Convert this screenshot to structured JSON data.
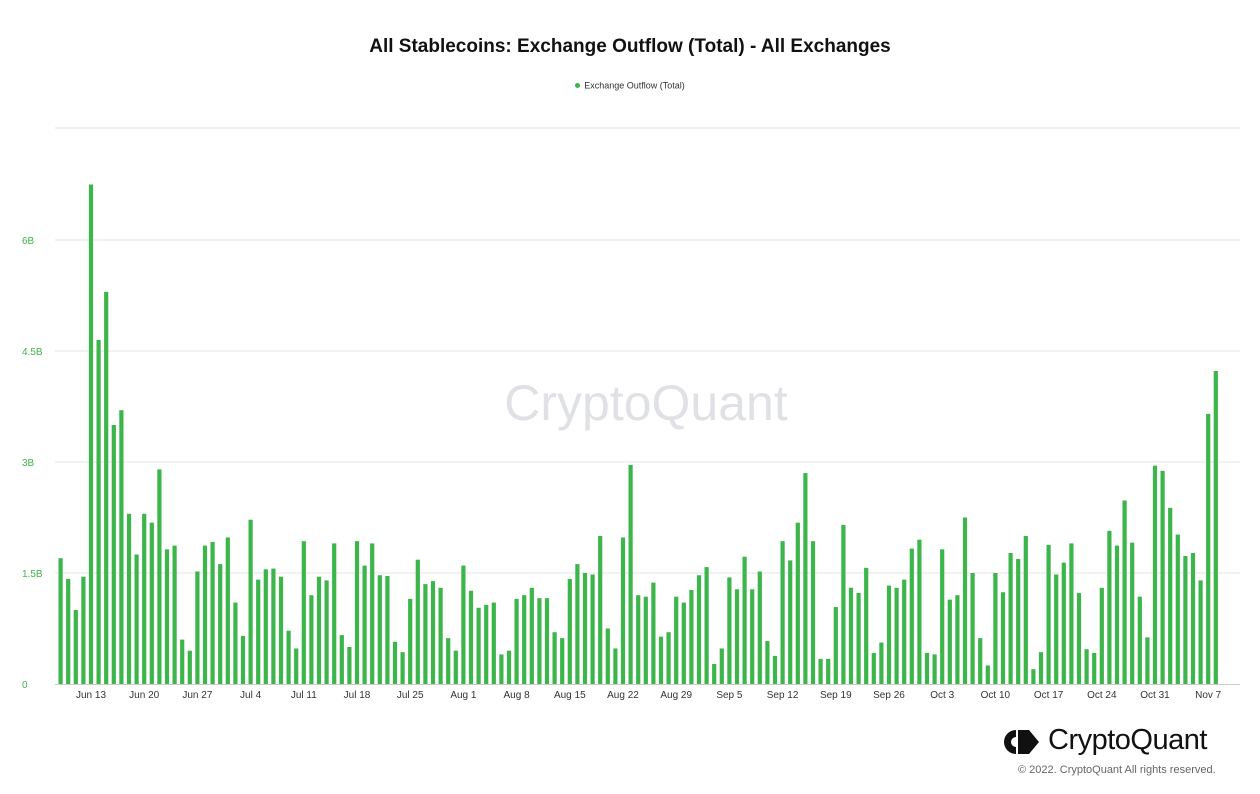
{
  "brand": {
    "name": "CryptoQuant",
    "watermark": "CryptoQuant",
    "copyright": "© 2022. CryptoQuant All rights reserved.",
    "accent_color": "#3cb54a"
  },
  "chart_data": {
    "type": "bar",
    "title": "All Stablecoins: Exchange Outflow (Total) - All Exchanges",
    "xlabel": "",
    "ylabel": "",
    "ylim": [
      0,
      7500000000
    ],
    "yticks": [
      0,
      1500000000,
      3000000000,
      4500000000,
      6000000000
    ],
    "ytick_labels": [
      "0",
      "1.5B",
      "3B",
      "4.5B",
      "6B"
    ],
    "grid": true,
    "legend_position": "top-center",
    "color": "#3cb54a",
    "start_date": "2022-06-09",
    "xtick_labels": [
      {
        "label": "Jun 13",
        "index": 4
      },
      {
        "label": "Jun 20",
        "index": 11
      },
      {
        "label": "Jun 27",
        "index": 18
      },
      {
        "label": "Jul 4",
        "index": 25
      },
      {
        "label": "Jul 11",
        "index": 32
      },
      {
        "label": "Jul 18",
        "index": 39
      },
      {
        "label": "Jul 25",
        "index": 46
      },
      {
        "label": "Aug 1",
        "index": 53
      },
      {
        "label": "Aug 8",
        "index": 60
      },
      {
        "label": "Aug 15",
        "index": 67
      },
      {
        "label": "Aug 22",
        "index": 74
      },
      {
        "label": "Aug 29",
        "index": 81
      },
      {
        "label": "Sep 5",
        "index": 88
      },
      {
        "label": "Sep 12",
        "index": 95
      },
      {
        "label": "Sep 19",
        "index": 102
      },
      {
        "label": "Sep 26",
        "index": 109
      },
      {
        "label": "Oct 3",
        "index": 116
      },
      {
        "label": "Oct 10",
        "index": 123
      },
      {
        "label": "Oct 17",
        "index": 130
      },
      {
        "label": "Oct 24",
        "index": 137
      },
      {
        "label": "Oct 31",
        "index": 144
      },
      {
        "label": "Nov 7",
        "index": 151
      }
    ],
    "series": [
      {
        "name": "Exchange Outflow (Total)",
        "values": [
          1.7,
          1.42,
          1.0,
          1.45,
          6.75,
          4.65,
          5.3,
          3.5,
          3.7,
          2.3,
          1.75,
          2.3,
          2.18,
          2.9,
          1.82,
          1.87,
          0.6,
          0.45,
          1.52,
          1.87,
          1.92,
          1.62,
          1.98,
          1.1,
          0.65,
          2.22,
          1.41,
          1.55,
          1.56,
          1.45,
          0.72,
          0.48,
          1.93,
          1.2,
          1.45,
          1.4,
          1.9,
          0.66,
          0.5,
          1.93,
          1.6,
          1.9,
          1.47,
          1.46,
          0.57,
          0.43,
          1.15,
          1.68,
          1.35,
          1.39,
          1.3,
          0.62,
          0.45,
          1.6,
          1.26,
          1.03,
          1.07,
          1.1,
          0.4,
          0.45,
          1.15,
          1.2,
          1.3,
          1.16,
          1.16,
          0.7,
          0.62,
          1.42,
          1.62,
          1.5,
          1.48,
          2.0,
          0.75,
          0.48,
          1.98,
          2.96,
          1.2,
          1.18,
          1.37,
          0.64,
          0.7,
          1.18,
          1.1,
          1.27,
          1.47,
          1.58,
          0.27,
          0.48,
          1.44,
          1.28,
          1.72,
          1.28,
          1.52,
          0.58,
          0.38,
          1.93,
          1.67,
          2.18,
          2.85,
          1.93,
          0.34,
          0.34,
          1.04,
          2.15,
          1.3,
          1.23,
          1.57,
          0.42,
          0.56,
          1.33,
          1.3,
          1.41,
          1.83,
          1.95,
          0.42,
          0.4,
          1.82,
          1.14,
          1.2,
          2.25,
          1.5,
          0.62,
          0.25,
          1.5,
          1.24,
          1.77,
          1.69,
          2.0,
          0.2,
          0.43,
          1.88,
          1.48,
          1.64,
          1.9,
          1.23,
          0.47,
          0.42,
          1.3,
          2.07,
          1.87,
          2.48,
          1.91,
          1.18,
          0.63,
          2.95,
          2.88,
          2.38,
          2.02,
          1.73,
          1.77,
          1.4,
          3.65,
          4.23
        ]
      }
    ]
  }
}
